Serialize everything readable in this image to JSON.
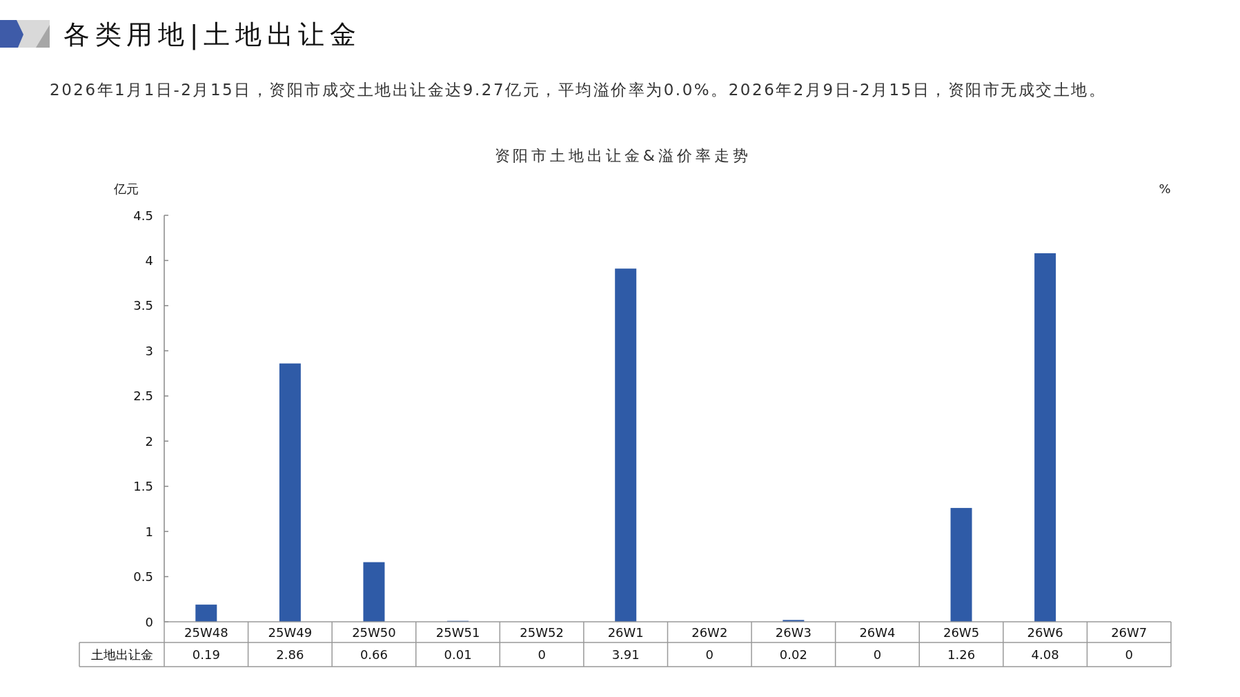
{
  "chart_data": {
    "type": "bar",
    "title": "资阳市土地出让金&溢价率走势",
    "annotations": [
      "各类用地|土地出让金",
      "2026年1月1日-2月15日，资阳市成交土地出让金达9.27亿元，平均溢价率为0.0%。2026年2月9日-2月15日，资阳市无成交土地。"
    ],
    "ylabel": "亿元",
    "y2label": "%",
    "categories": [
      "25W48",
      "25W49",
      "25W50",
      "25W51",
      "25W52",
      "26W1",
      "26W2",
      "26W3",
      "26W4",
      "26W5",
      "26W6",
      "26W7"
    ],
    "series": [
      {
        "name": "土地出让金",
        "color": "#2f5ba7",
        "values": [
          0.19,
          2.86,
          0.66,
          0.01,
          0,
          3.91,
          0,
          0.02,
          0,
          1.26,
          4.08,
          0
        ]
      }
    ],
    "ylim": [
      0,
      4.5
    ],
    "yticks": [
      0,
      0.5,
      1,
      1.5,
      2,
      2.5,
      3,
      3.5,
      4,
      4.5
    ],
    "data_labels": true
  }
}
